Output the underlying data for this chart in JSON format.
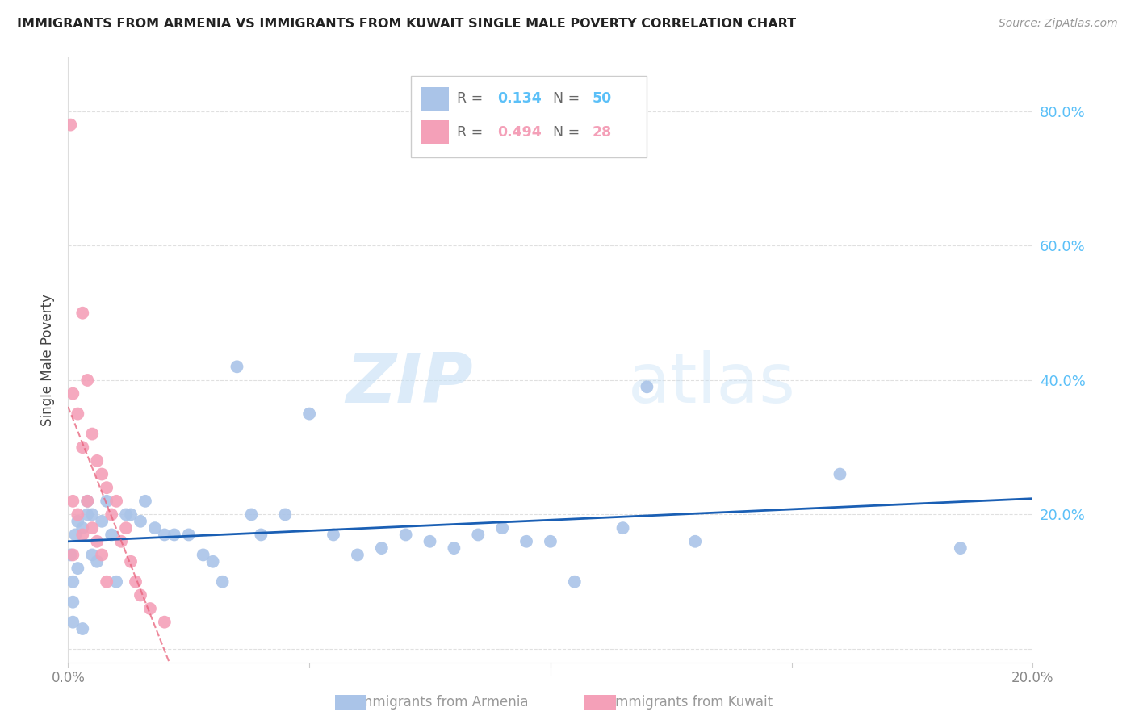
{
  "title": "IMMIGRANTS FROM ARMENIA VS IMMIGRANTS FROM KUWAIT SINGLE MALE POVERTY CORRELATION CHART",
  "source": "Source: ZipAtlas.com",
  "ylabel": "Single Male Poverty",
  "xlim": [
    0.0,
    0.2
  ],
  "ylim": [
    -0.02,
    0.88
  ],
  "armenia_color": "#aac4e8",
  "kuwait_color": "#f4a0b8",
  "armenia_line_color": "#1a5fb4",
  "kuwait_line_color": "#e8607a",
  "right_axis_color": "#5bc0f8",
  "R_armenia": 0.134,
  "N_armenia": 50,
  "R_kuwait": 0.494,
  "N_kuwait": 28,
  "watermark_zip": "ZIP",
  "watermark_atlas": "atlas",
  "armenia_x": [
    0.0005,
    0.001,
    0.001,
    0.001,
    0.0015,
    0.002,
    0.002,
    0.003,
    0.003,
    0.004,
    0.004,
    0.005,
    0.005,
    0.006,
    0.007,
    0.008,
    0.009,
    0.01,
    0.012,
    0.013,
    0.015,
    0.016,
    0.018,
    0.02,
    0.022,
    0.025,
    0.028,
    0.03,
    0.032,
    0.035,
    0.038,
    0.04,
    0.045,
    0.05,
    0.055,
    0.06,
    0.065,
    0.07,
    0.075,
    0.08,
    0.085,
    0.09,
    0.095,
    0.1,
    0.105,
    0.115,
    0.12,
    0.13,
    0.16,
    0.185
  ],
  "armenia_y": [
    0.14,
    0.1,
    0.07,
    0.04,
    0.17,
    0.19,
    0.12,
    0.18,
    0.03,
    0.2,
    0.22,
    0.2,
    0.14,
    0.13,
    0.19,
    0.22,
    0.17,
    0.1,
    0.2,
    0.2,
    0.19,
    0.22,
    0.18,
    0.17,
    0.17,
    0.17,
    0.14,
    0.13,
    0.1,
    0.42,
    0.2,
    0.17,
    0.2,
    0.35,
    0.17,
    0.14,
    0.15,
    0.17,
    0.16,
    0.15,
    0.17,
    0.18,
    0.16,
    0.16,
    0.1,
    0.18,
    0.39,
    0.16,
    0.26,
    0.15
  ],
  "kuwait_x": [
    0.0005,
    0.001,
    0.001,
    0.001,
    0.002,
    0.002,
    0.003,
    0.003,
    0.003,
    0.004,
    0.004,
    0.005,
    0.005,
    0.006,
    0.006,
    0.007,
    0.007,
    0.008,
    0.008,
    0.009,
    0.01,
    0.011,
    0.012,
    0.013,
    0.014,
    0.015,
    0.017,
    0.02
  ],
  "kuwait_y": [
    0.78,
    0.38,
    0.22,
    0.14,
    0.35,
    0.2,
    0.5,
    0.3,
    0.17,
    0.4,
    0.22,
    0.32,
    0.18,
    0.28,
    0.16,
    0.26,
    0.14,
    0.24,
    0.1,
    0.2,
    0.22,
    0.16,
    0.18,
    0.13,
    0.1,
    0.08,
    0.06,
    0.04
  ]
}
